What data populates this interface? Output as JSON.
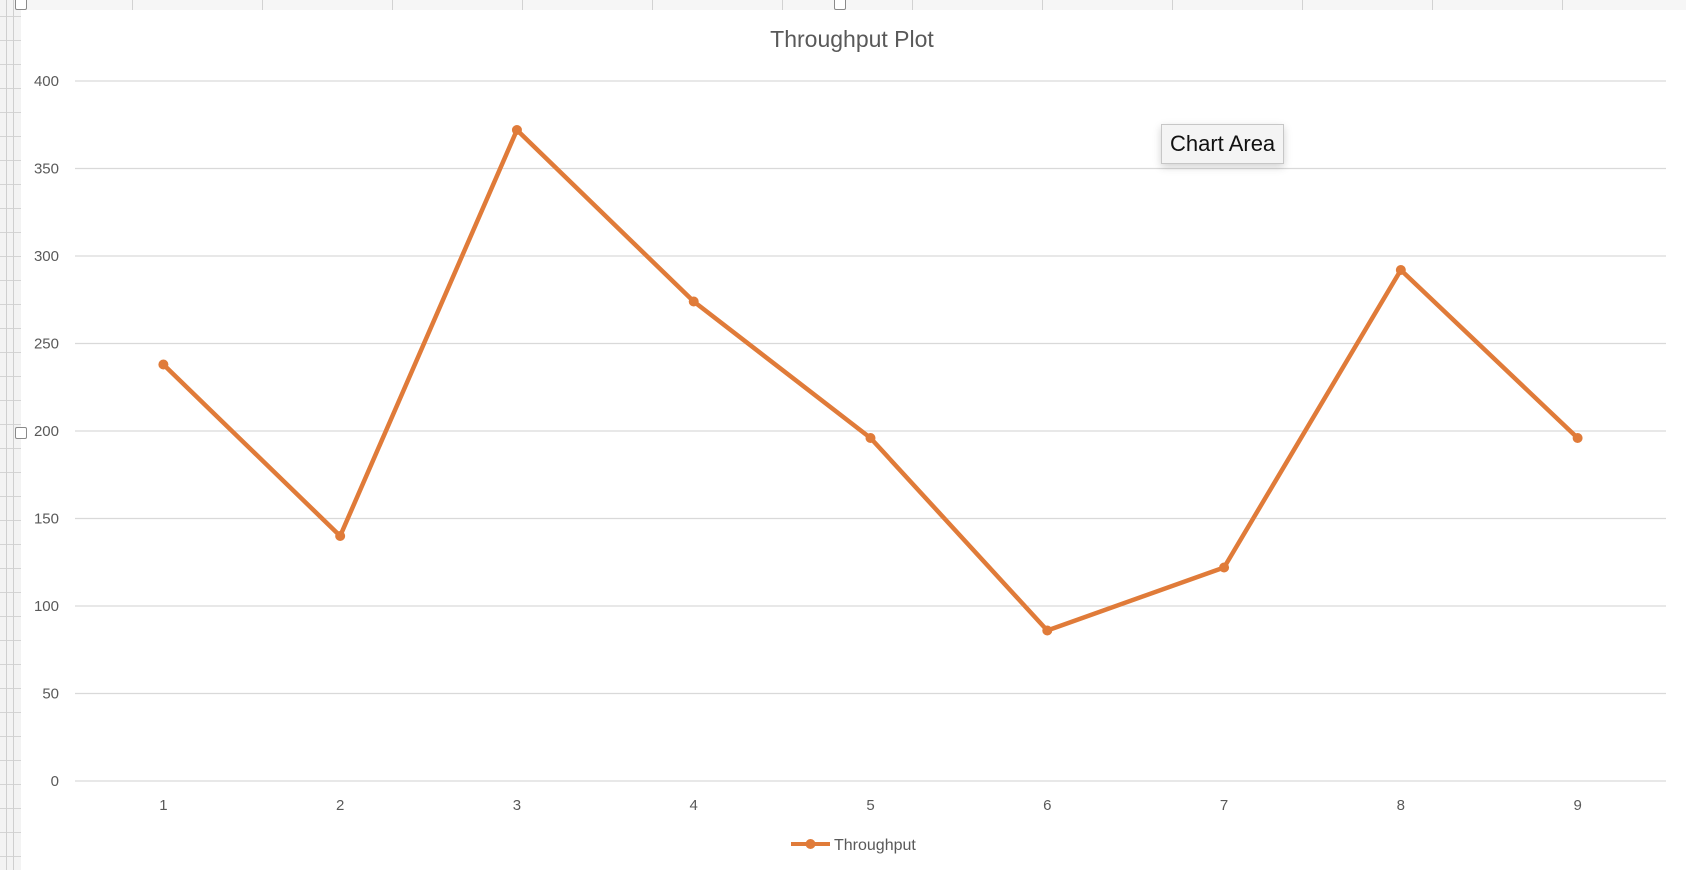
{
  "tooltip": {
    "text": "Chart Area"
  },
  "colors": {
    "series": "#e07b39",
    "gridline": "#d9d9d9",
    "axis_text": "#595959",
    "title_text": "#595959"
  },
  "chart_data": {
    "type": "line",
    "title": "Throughput Plot",
    "xlabel": "",
    "ylabel": "",
    "x": [
      1,
      2,
      3,
      4,
      5,
      6,
      7,
      8,
      9
    ],
    "series": [
      {
        "name": "Throughput",
        "values": [
          238,
          140,
          372,
          274,
          196,
          86,
          122,
          292,
          196
        ],
        "color": "#e07b39",
        "markers": true
      }
    ],
    "ylim": [
      0,
      400
    ],
    "yticks": [
      0,
      50,
      100,
      150,
      200,
      250,
      300,
      350,
      400
    ],
    "grid": true,
    "legend": "bottom-center"
  }
}
